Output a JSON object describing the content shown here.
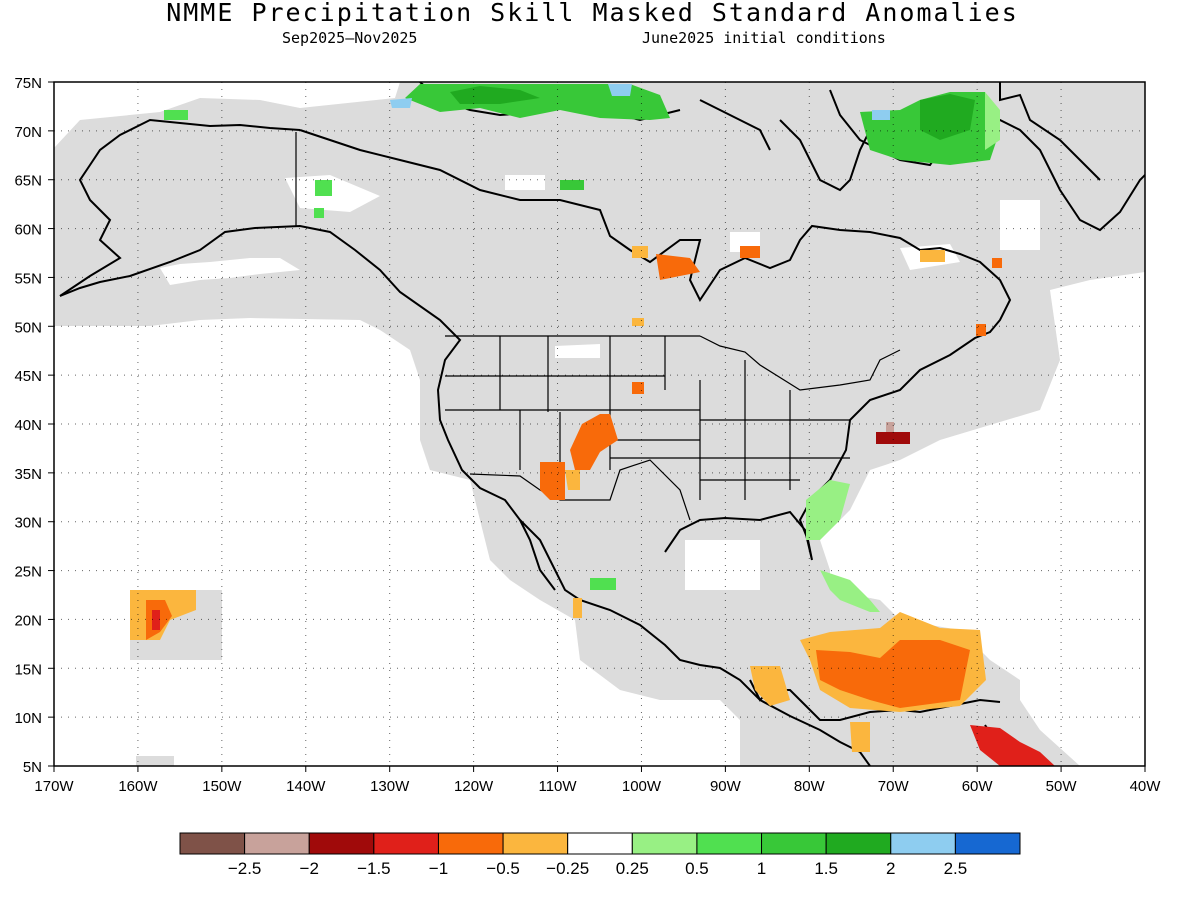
{
  "title": "NMME Precipitation Skill Masked Standard Anomalies",
  "season": "Sep2025—Nov2025",
  "initial_conditions": "June2025 initial conditions",
  "map": {
    "lat_labels": [
      "75N",
      "70N",
      "65N",
      "60N",
      "55N",
      "50N",
      "45N",
      "40N",
      "35N",
      "30N",
      "25N",
      "20N",
      "15N",
      "10N",
      "5N"
    ],
    "lon_labels": [
      "170W",
      "160W",
      "150W",
      "140W",
      "130W",
      "120W",
      "110W",
      "100W",
      "90W",
      "80W",
      "70W",
      "60W",
      "50W",
      "40W"
    ],
    "lat_values": [
      75,
      70,
      65,
      60,
      55,
      50,
      45,
      40,
      35,
      30,
      25,
      20,
      15,
      10,
      5
    ],
    "lon_values": [
      -170,
      -160,
      -150,
      -140,
      -130,
      -120,
      -110,
      -100,
      -90,
      -80,
      -70,
      -60,
      -50,
      -40
    ],
    "lon_range": [
      -170,
      -40
    ],
    "lat_range": [
      5,
      75
    ],
    "grid": true,
    "masked_color": "#dcdcdc"
  },
  "legend": {
    "colors": [
      "#7f5248",
      "#c8a29b",
      "#a00a0a",
      "#e0201a",
      "#f86a0a",
      "#fbb63e",
      "#ffffff",
      "#98f084",
      "#50e050",
      "#38c838",
      "#20aa20",
      "#8ecdf0",
      "#1668d2"
    ],
    "labels": [
      "−2.5",
      "−2",
      "−1.5",
      "−1",
      "−0.5",
      "−0.25",
      "0.25",
      "0.5",
      "1",
      "1.5",
      "2",
      "2.5"
    ]
  },
  "anomaly_regions": [
    {
      "id": "arctic-canada-wet",
      "color": "#38c838"
    },
    {
      "id": "greenland-wet",
      "color": "#38c838"
    },
    {
      "id": "southwest-us-dry",
      "color": "#f86a0a"
    },
    {
      "id": "caribbean-dry",
      "color": "#f86a0a"
    },
    {
      "id": "venezuela-very-dry",
      "color": "#e0201a"
    },
    {
      "id": "hawaii-dry",
      "color": "#f86a0a"
    },
    {
      "id": "southeast-us-wet",
      "color": "#98f084"
    },
    {
      "id": "mid-atlantic-dry",
      "color": "#a00a0a"
    }
  ]
}
